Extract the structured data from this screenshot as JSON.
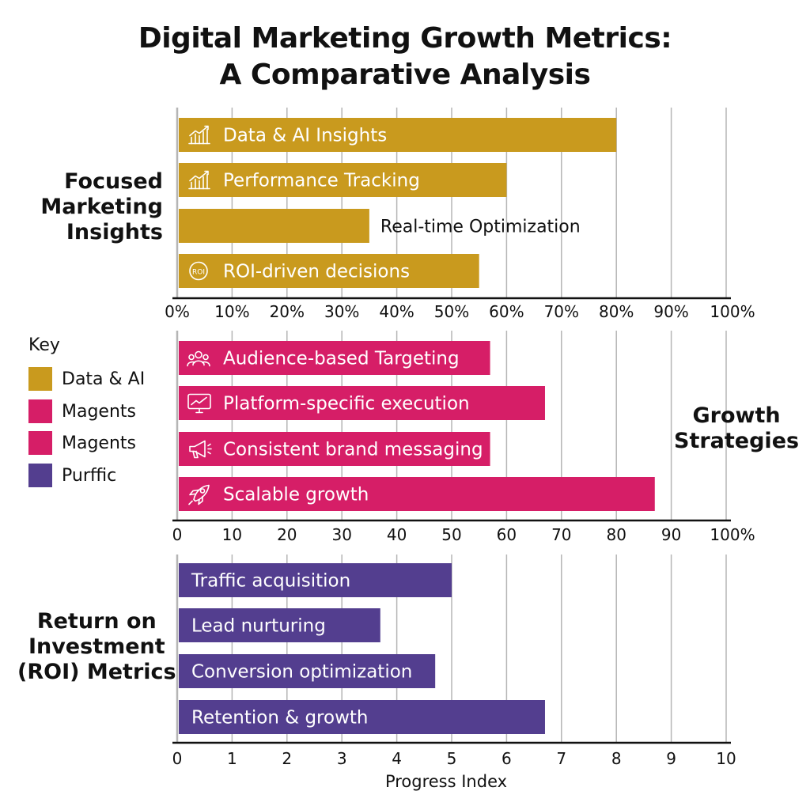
{
  "title": [
    "Digital Marketing Growth Metrics:",
    "A Comparative Analysis"
  ],
  "chart_data": [
    {
      "type": "bar",
      "orientation": "horizontal",
      "group_label": [
        "Focused",
        "Marketing",
        "Insights"
      ],
      "categories": [
        "Data & AI Insights",
        "Performance Tracking",
        "Real-time Optimization",
        "ROI-driven decisions"
      ],
      "values": [
        80,
        60,
        35,
        55
      ],
      "icons": [
        "chart-growth-icon",
        "chart-growth-icon",
        "",
        "roi-cycle-icon"
      ],
      "label_outside": [
        false,
        false,
        true,
        false
      ],
      "color": "#C99A1E",
      "xlim": [
        0,
        100
      ],
      "xticks": [
        "0%",
        "10%",
        "20%",
        "30%",
        "40%",
        "50%",
        "60%",
        "70%",
        "80%",
        "90%",
        "100%"
      ],
      "grid": true
    },
    {
      "type": "bar",
      "orientation": "horizontal",
      "group_label": [
        "Growth",
        "Strategies"
      ],
      "categories": [
        "Audience-based Targeting",
        "Platform-specific execution",
        "Consistent brand messaging",
        "Scalable growth"
      ],
      "values": [
        57,
        67,
        57,
        87
      ],
      "icons": [
        "audience-icon",
        "monitor-chart-icon",
        "megaphone-icon",
        "rocket-icon"
      ],
      "label_outside": [
        false,
        false,
        false,
        false
      ],
      "color": "#D61E67",
      "xlim": [
        0,
        100
      ],
      "xticks": [
        "0",
        "10",
        "20",
        "30",
        "40",
        "50",
        "60",
        "70",
        "80",
        "90",
        "100%"
      ],
      "grid": true
    },
    {
      "type": "bar",
      "orientation": "horizontal",
      "group_label": [
        "Return on",
        "Investment",
        "(ROI) Metrics"
      ],
      "categories": [
        "Traffic acquisition",
        "Lead nurturing",
        "Conversion optimization",
        "Retention & growth"
      ],
      "values": [
        5.0,
        3.7,
        4.7,
        6.7
      ],
      "icons": [
        "",
        "",
        "",
        ""
      ],
      "label_outside": [
        false,
        false,
        false,
        false
      ],
      "color": "#533E8F",
      "xlim": [
        0,
        10
      ],
      "xticks": [
        "0",
        "1",
        "2",
        "3",
        "4",
        "5",
        "6",
        "7",
        "8",
        "9",
        "10"
      ],
      "xlabel": "Progress Index",
      "grid": true
    }
  ],
  "legend": {
    "title": "Key",
    "items": [
      {
        "label": "Data & AI",
        "color": "#C99A1E"
      },
      {
        "label": "Magents",
        "color": "#D61E67"
      },
      {
        "label": "Magents",
        "color": "#D61E67"
      },
      {
        "label": "Purffic",
        "color": "#533E8F"
      }
    ]
  }
}
